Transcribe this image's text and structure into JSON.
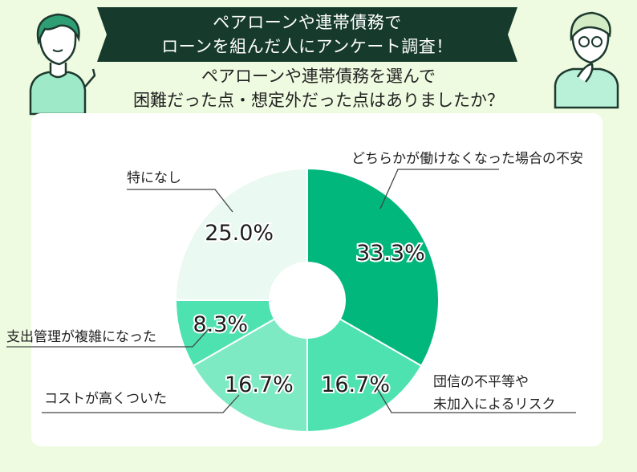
{
  "header": {
    "banner_line1": "ペアローンや連帯債務で",
    "banner_line2": "ローンを組んだ人にアンケート調査！",
    "question_line1": "ペアローンや連帯債務を選んで",
    "question_line2": "困難だった点・想定外だった点はありましたか？"
  },
  "chart_data": {
    "type": "pie",
    "donut": true,
    "start_angle_deg": 0,
    "direction": "clockwise",
    "slices": [
      {
        "label": "どちらかが働けなくなった場合の不安",
        "value": 33.3,
        "value_label": "33.3%",
        "color": "#02b77b"
      },
      {
        "label_lines": [
          "団信の不平等や",
          "未加入によるリスク"
        ],
        "value": 16.7,
        "value_label": "16.7%",
        "color": "#4de2b0"
      },
      {
        "label": "コストが高くついた",
        "value": 16.7,
        "value_label": "16.7%",
        "color": "#7eeac4"
      },
      {
        "label": "支出管理が複雑になった",
        "value": 8.3,
        "value_label": "8.3%",
        "color": "#4de2b0"
      },
      {
        "label": "特になし",
        "value": 25.0,
        "value_label": "25.0%",
        "color": "#eaf9f2"
      }
    ]
  }
}
